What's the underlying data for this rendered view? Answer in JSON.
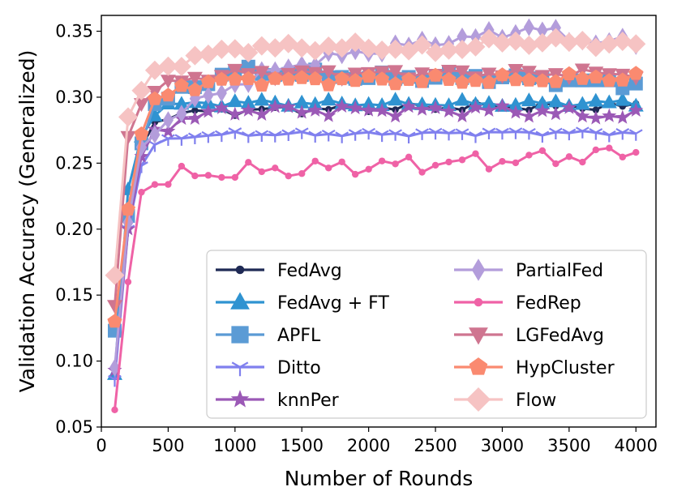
{
  "chart_data": {
    "type": "line",
    "title": "",
    "xlabel": "Number of Rounds",
    "ylabel": "Validation Accuracy (Generalized)",
    "xlim": [
      0,
      4150
    ],
    "ylim": [
      0.05,
      0.362
    ],
    "xticks": [
      0,
      500,
      1000,
      1500,
      2000,
      2500,
      3000,
      3500,
      4000
    ],
    "xtick_labels": [
      "0",
      "500",
      "1000",
      "1500",
      "2000",
      "2500",
      "3000",
      "3500",
      "4000"
    ],
    "yticks": [
      0.05,
      0.1,
      0.15,
      0.2,
      0.25,
      0.3,
      0.35
    ],
    "ytick_labels": [
      "0.05",
      "0.10",
      "0.15",
      "0.20",
      "0.25",
      "0.30",
      "0.35"
    ],
    "legend_position": "lower-right",
    "legend_columns": 2,
    "grid": false,
    "series": [
      {
        "name": "FedAvg",
        "color": "#1f2a55",
        "marker": "circle",
        "anchors": [
          [
            100,
            0.088
          ],
          [
            200,
            0.215
          ],
          [
            300,
            0.262
          ],
          [
            400,
            0.28
          ],
          [
            500,
            0.287
          ],
          [
            1000,
            0.29
          ],
          [
            2000,
            0.292
          ],
          [
            3000,
            0.293
          ],
          [
            4000,
            0.293
          ]
        ],
        "noise": 0.004
      },
      {
        "name": "FedAvg + FT",
        "color": "#2f93d1",
        "marker": "triangle-up",
        "anchors": [
          [
            100,
            0.09
          ],
          [
            200,
            0.23
          ],
          [
            300,
            0.27
          ],
          [
            400,
            0.289
          ],
          [
            500,
            0.294
          ],
          [
            1000,
            0.296
          ],
          [
            2000,
            0.295
          ],
          [
            3000,
            0.295
          ],
          [
            4000,
            0.296
          ]
        ],
        "noise": 0.003
      },
      {
        "name": "APFL",
        "color": "#5b9bd5",
        "marker": "square",
        "anchors": [
          [
            100,
            0.123
          ],
          [
            200,
            0.21
          ],
          [
            300,
            0.265
          ],
          [
            400,
            0.293
          ],
          [
            600,
            0.305
          ],
          [
            1000,
            0.32
          ],
          [
            2000,
            0.315
          ],
          [
            3000,
            0.315
          ],
          [
            4000,
            0.31
          ]
        ],
        "noise": 0.004
      },
      {
        "name": "Ditto",
        "color": "#8080ee",
        "marker": "tri-down",
        "anchors": [
          [
            100,
            0.086
          ],
          [
            200,
            0.2
          ],
          [
            300,
            0.248
          ],
          [
            400,
            0.264
          ],
          [
            600,
            0.27
          ],
          [
            1000,
            0.272
          ],
          [
            2000,
            0.272
          ],
          [
            3000,
            0.273
          ],
          [
            4000,
            0.273
          ]
        ],
        "noise": 0.002
      },
      {
        "name": "knnPer",
        "color": "#9b59b6",
        "marker": "star",
        "anchors": [
          [
            100,
            0.093
          ],
          [
            200,
            0.2
          ],
          [
            300,
            0.255
          ],
          [
            400,
            0.272
          ],
          [
            600,
            0.284
          ],
          [
            1000,
            0.29
          ],
          [
            2000,
            0.29
          ],
          [
            3000,
            0.29
          ],
          [
            4000,
            0.285
          ]
        ],
        "noise": 0.005
      },
      {
        "name": "PartialFed",
        "color": "#b39ddb",
        "marker": "thin-diamond",
        "anchors": [
          [
            100,
            0.095
          ],
          [
            200,
            0.205
          ],
          [
            300,
            0.262
          ],
          [
            400,
            0.275
          ],
          [
            600,
            0.29
          ],
          [
            1000,
            0.31
          ],
          [
            1500,
            0.326
          ],
          [
            2000,
            0.335
          ],
          [
            2500,
            0.342
          ],
          [
            3000,
            0.348
          ],
          [
            3200,
            0.353
          ],
          [
            3600,
            0.343
          ],
          [
            4000,
            0.341
          ]
        ],
        "noise": 0.005
      },
      {
        "name": "FedRep",
        "color": "#ef62a6",
        "marker": "circle",
        "anchors": [
          [
            100,
            0.063
          ],
          [
            200,
            0.16
          ],
          [
            300,
            0.228
          ],
          [
            400,
            0.235
          ],
          [
            600,
            0.24
          ],
          [
            1000,
            0.243
          ],
          [
            2000,
            0.248
          ],
          [
            3000,
            0.252
          ],
          [
            4000,
            0.258
          ]
        ],
        "noise": 0.008
      },
      {
        "name": "LGFedAvg",
        "color": "#cf7590",
        "marker": "triangle-down",
        "anchors": [
          [
            100,
            0.142
          ],
          [
            200,
            0.27
          ],
          [
            300,
            0.295
          ],
          [
            400,
            0.305
          ],
          [
            600,
            0.313
          ],
          [
            1000,
            0.318
          ],
          [
            2000,
            0.318
          ],
          [
            3000,
            0.318
          ],
          [
            4000,
            0.318
          ]
        ],
        "noise": 0.004
      },
      {
        "name": "HypCluster",
        "color": "#fa8a70",
        "marker": "pentagon",
        "anchors": [
          [
            100,
            0.13
          ],
          [
            200,
            0.215
          ],
          [
            300,
            0.272
          ],
          [
            400,
            0.296
          ],
          [
            600,
            0.308
          ],
          [
            1000,
            0.313
          ],
          [
            2000,
            0.313
          ],
          [
            3000,
            0.313
          ],
          [
            4000,
            0.315
          ]
        ],
        "noise": 0.004
      },
      {
        "name": "Flow",
        "color": "#f6c3c3",
        "marker": "diamond",
        "anchors": [
          [
            100,
            0.165
          ],
          [
            200,
            0.285
          ],
          [
            300,
            0.305
          ],
          [
            400,
            0.32
          ],
          [
            600,
            0.327
          ],
          [
            1000,
            0.337
          ],
          [
            1500,
            0.338
          ],
          [
            2000,
            0.338
          ],
          [
            2500,
            0.335
          ],
          [
            3000,
            0.342
          ],
          [
            3500,
            0.342
          ],
          [
            4000,
            0.34
          ]
        ],
        "noise": 0.004
      }
    ]
  }
}
